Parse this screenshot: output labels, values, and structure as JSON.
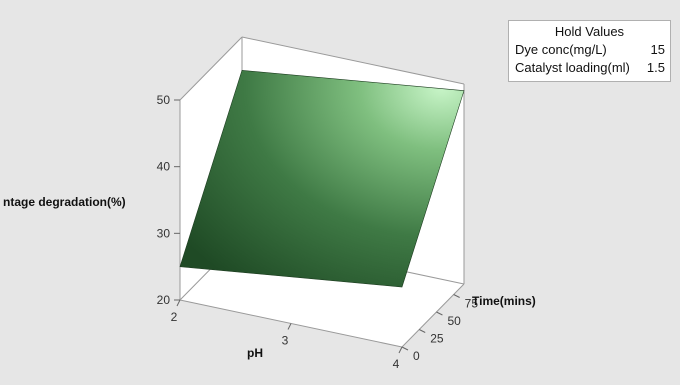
{
  "legend": {
    "title": "Hold Values",
    "rows": [
      {
        "label": "Dye conc(mg/L)",
        "value": "15"
      },
      {
        "label": "Catalyst loading(ml)",
        "value": "1.5"
      }
    ]
  },
  "chart_data": {
    "type": "surface",
    "title": "",
    "zlabel": "ntage degradation(%)",
    "xlabel": "pH",
    "ylabel": "Time(mins)",
    "x_ticks": [
      2,
      3,
      4
    ],
    "y_ticks": [
      0,
      25,
      50,
      75
    ],
    "z_ticks": [
      20,
      30,
      40,
      50
    ],
    "xlim": [
      2,
      4
    ],
    "ylim": [
      0,
      90
    ],
    "zlim": [
      20,
      50
    ],
    "surface": [
      {
        "pH": 2,
        "time": 0,
        "degradation": 25
      },
      {
        "pH": 4,
        "time": 0,
        "degradation": 29
      },
      {
        "pH": 2,
        "time": 90,
        "degradation": 45
      },
      {
        "pH": 4,
        "time": 90,
        "degradation": 49
      }
    ],
    "surface_color": "#2f6a35",
    "highlight_color": "#c8f5c8"
  }
}
